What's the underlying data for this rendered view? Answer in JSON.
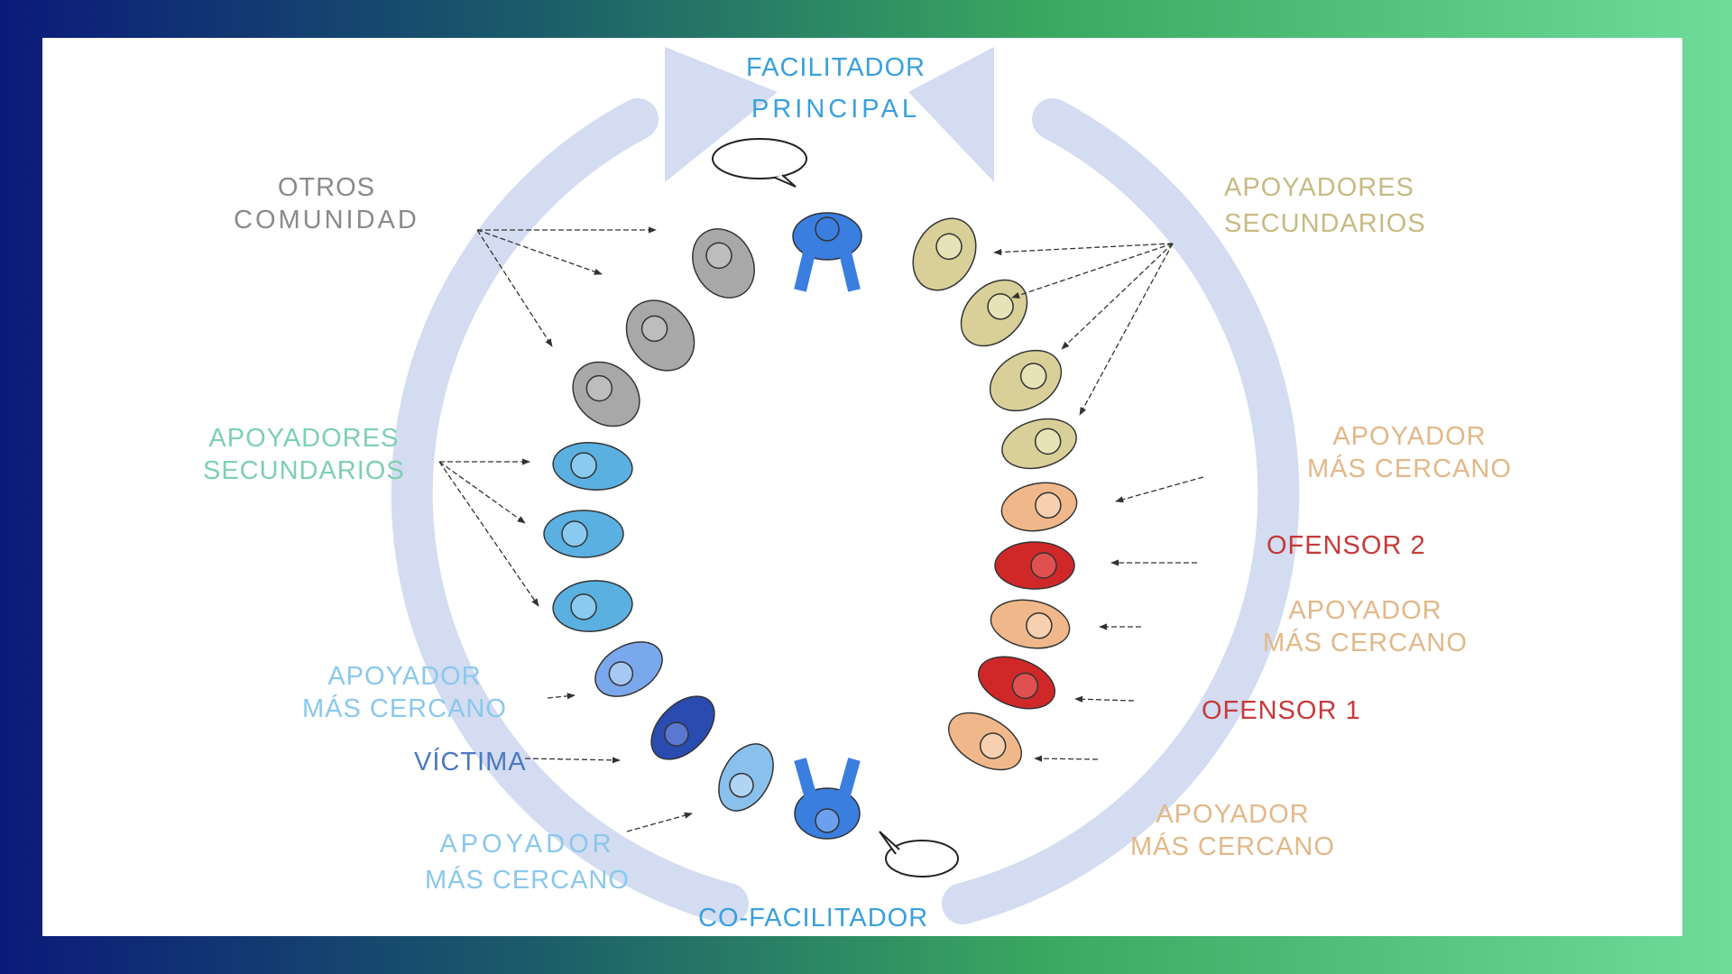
{
  "colors": {
    "frame_gradient": [
      "#0b1a7a",
      "#3aa860",
      "#6fdc9a"
    ],
    "cycle_arrow": "#d3dcf0",
    "facilitator": "#3a7ee0",
    "community": "#9a9a9a",
    "secondary_left": "#5ab0e0",
    "closest_left": "#8ac0ec",
    "victim": "#2a4bb0",
    "secondary_right": "#d8d098",
    "closest_right": "#f0b88a",
    "offender": "#d02828"
  },
  "labels": {
    "facilitador_principal": {
      "line1": "FACILITADOR",
      "line2": "PRINCIPAL",
      "color": "#3aa0dc"
    },
    "otros_comunidad": {
      "line1": "OTROS",
      "line2": "COMUNIDAD",
      "color": "#8a8a8a"
    },
    "apoyadores_secundarios_right": {
      "line1": "APOYADORES",
      "line2": "SECUNDARIOS",
      "color": "#c8ba82"
    },
    "apoyadores_secundarios_left": {
      "line1": "APOYADORES",
      "line2": "SECUNDARIOS",
      "color": "#7ecfb4"
    },
    "apoyador_right_top": {
      "line1": "APOYADOR",
      "line2": "MÁS CERCANO",
      "color": "#e2b888"
    },
    "ofensor_2": {
      "text": "OFENSOR 2",
      "color": "#c63a3a"
    },
    "apoyador_right_mid": {
      "line1": "APOYADOR",
      "line2": "MÁS CERCANO",
      "color": "#e2b888"
    },
    "ofensor_1": {
      "text": "OFENSOR 1",
      "color": "#c63a3a"
    },
    "apoyador_right_bottom": {
      "line1": "APOYADOR",
      "line2": "MÁS CERCANO",
      "color": "#e2b888"
    },
    "apoyador_left_mid": {
      "line1": "APOYADOR",
      "line2": "MÁS CERCANO",
      "color": "#8ac8ec"
    },
    "victima": {
      "text": "VÍCTIMA",
      "color": "#4a78c0"
    },
    "apoyador_left_bottom": {
      "line1": "APOYADOR",
      "line2": "MÁS CERCANO",
      "color": "#8ac8ec"
    },
    "co_facilitador": {
      "text": "CO-FACILITADOR",
      "color": "#3aa0dc"
    }
  }
}
